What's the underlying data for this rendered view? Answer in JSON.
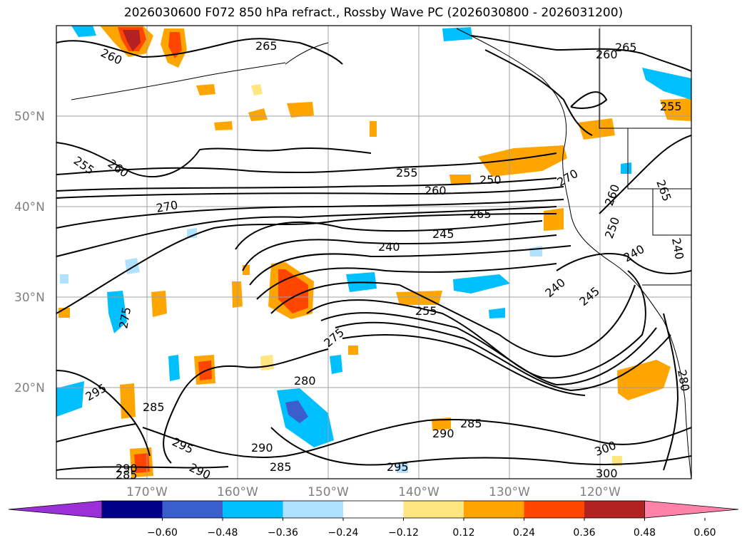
{
  "title": "2026030600 F072 850 hPa refract., Rossby Wave PC (2026030800 - 2026031200)",
  "map": {
    "lat_labels": [
      "50°N",
      "40°N",
      "30°N",
      "20°N"
    ],
    "lon_labels": [
      "170°W",
      "160°W",
      "150°W",
      "140°W",
      "130°W",
      "120°W"
    ],
    "contour_labels": [
      "260",
      "265",
      "260",
      "265",
      "255",
      "255",
      "260",
      "255",
      "260",
      "250",
      "270",
      "270",
      "265",
      "265",
      "260",
      "250",
      "240",
      "245",
      "240",
      "240",
      "245",
      "240",
      "275",
      "255",
      "275",
      "280",
      "295",
      "285",
      "295",
      "290",
      "290",
      "285",
      "295",
      "290",
      "285",
      "300",
      "300",
      "280",
      "290",
      "285"
    ]
  },
  "colorbar": {
    "ticks": [
      "−0.60",
      "−0.48",
      "−0.36",
      "−0.24",
      "−0.12",
      "0.12",
      "0.24",
      "0.36",
      "0.48",
      "0.60"
    ],
    "colors": [
      "#9b30d9",
      "#00008b",
      "#3a5fcd",
      "#00bfff",
      "#b0e2ff",
      "#ffffff",
      "#ffe680",
      "#ffa500",
      "#ff4500",
      "#b22222",
      "#ff82ab"
    ]
  }
}
